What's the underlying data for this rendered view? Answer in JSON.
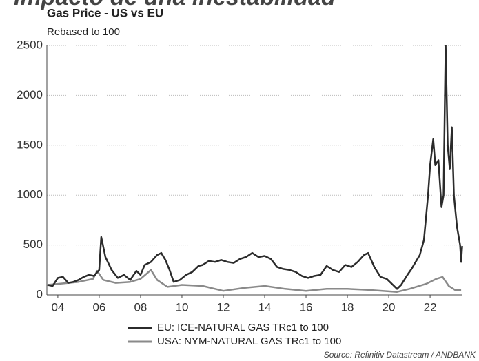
{
  "header_text": "Impacto de una inestabilidad",
  "chart_data": {
    "type": "line",
    "title": "Gas Price - US vs EU",
    "subtitle": "Rebased to 100",
    "source": "Source: Refinitiv Datastream / ANDBANK",
    "xlim": [
      2003.47,
      2023.53
    ],
    "ylim": [
      0,
      2500
    ],
    "yticks": [
      0,
      500,
      1000,
      1500,
      2000,
      2500
    ],
    "xticks": [
      {
        "value": 2004,
        "label": "04"
      },
      {
        "value": 2006,
        "label": "06"
      },
      {
        "value": 2008,
        "label": "08"
      },
      {
        "value": 2010,
        "label": "10"
      },
      {
        "value": 2012,
        "label": "12"
      },
      {
        "value": 2014,
        "label": "14"
      },
      {
        "value": 2016,
        "label": "16"
      },
      {
        "value": 2018,
        "label": "18"
      },
      {
        "value": 2020,
        "label": "20"
      },
      {
        "value": 2022,
        "label": "22"
      }
    ],
    "grid": true,
    "series": [
      {
        "name": "EU: ICE-NATURAL GAS TRc1 to 100",
        "color": "#2b2b2b",
        "x": [
          2003.5,
          2003.75,
          2004.0,
          2004.25,
          2004.5,
          2004.75,
          2005.0,
          2005.25,
          2005.5,
          2005.75,
          2006.0,
          2006.1,
          2006.3,
          2006.6,
          2006.9,
          2007.2,
          2007.5,
          2007.8,
          2008.0,
          2008.2,
          2008.5,
          2008.8,
          2009.0,
          2009.2,
          2009.4,
          2009.6,
          2009.9,
          2010.2,
          2010.5,
          2010.8,
          2011.0,
          2011.3,
          2011.6,
          2011.9,
          2012.2,
          2012.5,
          2012.8,
          2013.1,
          2013.4,
          2013.7,
          2014.0,
          2014.3,
          2014.6,
          2014.9,
          2015.2,
          2015.5,
          2015.8,
          2016.1,
          2016.4,
          2016.7,
          2017.0,
          2017.3,
          2017.6,
          2017.9,
          2018.2,
          2018.5,
          2018.8,
          2019.0,
          2019.3,
          2019.6,
          2019.9,
          2020.2,
          2020.4,
          2020.6,
          2020.9,
          2021.1,
          2021.3,
          2021.5,
          2021.7,
          2021.9,
          2022.0,
          2022.15,
          2022.25,
          2022.4,
          2022.55,
          2022.65,
          2022.75,
          2022.85,
          2022.95,
          2023.05,
          2023.15,
          2023.3,
          2023.45,
          2023.5,
          2023.55
        ],
        "values": [
          100,
          90,
          170,
          180,
          120,
          130,
          150,
          180,
          200,
          190,
          250,
          580,
          380,
          250,
          170,
          200,
          150,
          240,
          200,
          300,
          330,
          400,
          420,
          350,
          250,
          130,
          150,
          200,
          230,
          290,
          300,
          340,
          330,
          350,
          330,
          320,
          360,
          380,
          420,
          380,
          390,
          360,
          280,
          260,
          250,
          230,
          190,
          170,
          190,
          200,
          290,
          250,
          230,
          300,
          280,
          330,
          400,
          420,
          280,
          180,
          160,
          100,
          60,
          100,
          200,
          260,
          330,
          400,
          550,
          1000,
          1300,
          1560,
          1300,
          1350,
          880,
          1000,
          2500,
          1500,
          1260,
          1680,
          1000,
          680,
          500,
          330,
          490
        ]
      },
      {
        "name": "USA: NYM-NATURAL GAS TRc1 to 100",
        "color": "#8a8a8a",
        "x": [
          2003.5,
          2004.0,
          2005.0,
          2005.7,
          2005.9,
          2006.2,
          2006.8,
          2007.5,
          2008.0,
          2008.5,
          2008.8,
          2009.3,
          2010.0,
          2011.0,
          2012.0,
          2013.0,
          2014.0,
          2015.0,
          2016.0,
          2017.0,
          2018.0,
          2019.0,
          2020.4,
          2021.0,
          2021.8,
          2022.3,
          2022.6,
          2022.9,
          2023.2,
          2023.5
        ],
        "values": [
          100,
          110,
          130,
          160,
          240,
          150,
          120,
          130,
          160,
          250,
          150,
          80,
          100,
          90,
          40,
          70,
          90,
          60,
          40,
          60,
          60,
          50,
          30,
          60,
          110,
          160,
          180,
          90,
          50,
          50
        ]
      }
    ]
  }
}
